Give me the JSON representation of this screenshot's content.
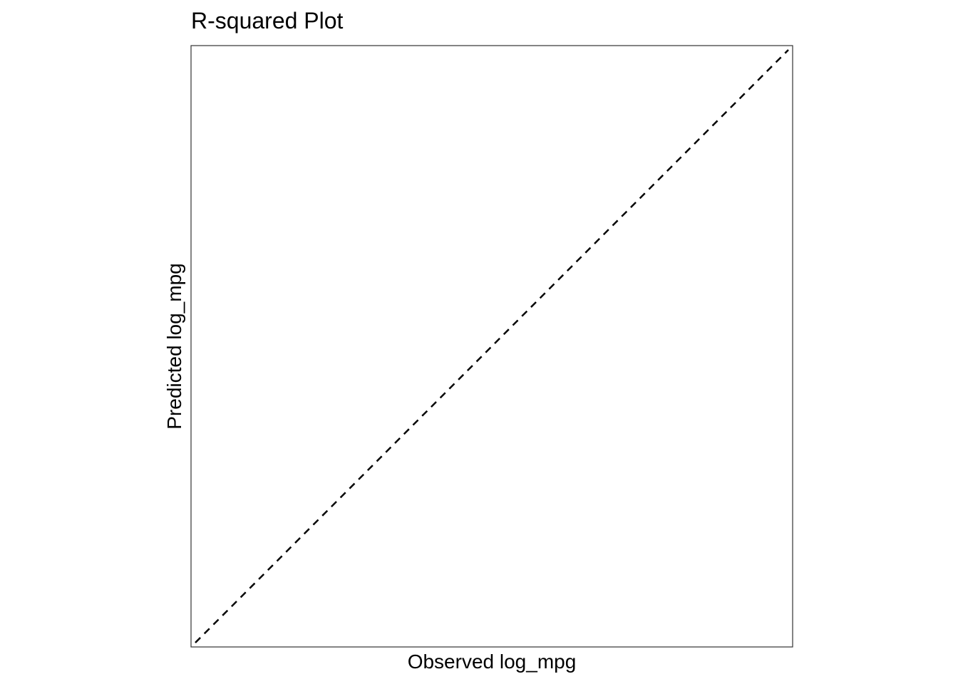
{
  "chart_data": {
    "type": "scatter",
    "title": "R-squared Plot",
    "xlabel": "Observed log_mpg",
    "ylabel": "Predicted log_mpg",
    "grid": false,
    "legend": "none",
    "x_ticks_shown": false,
    "y_ticks_shown": false,
    "points": [],
    "reference_line": {
      "type": "identity",
      "style": "dashed",
      "color": "#000000"
    },
    "colors": {
      "background": "#ffffff",
      "panel_border": "#333333",
      "reference_line": "#000000"
    }
  }
}
